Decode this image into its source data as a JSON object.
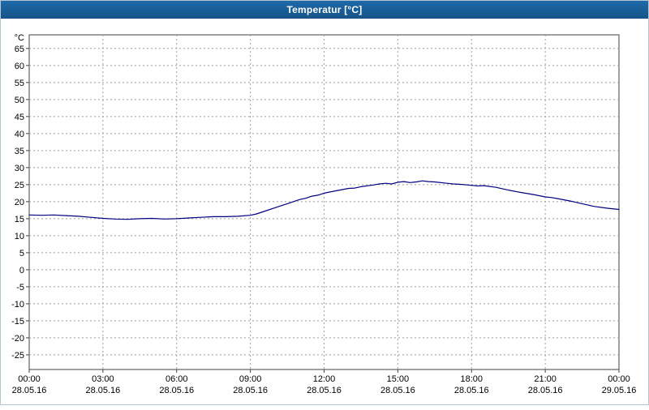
{
  "title_bar": {
    "title": "Temperatur [°C]"
  },
  "chart_data": {
    "type": "line",
    "title": "Temperatur [°C]",
    "ylabel": "°C",
    "xlabel": "",
    "grid": true,
    "legend": "none",
    "ylim": [
      -29.3,
      69.0
    ],
    "xlim": [
      0,
      24
    ],
    "yticks": [
      65,
      60,
      55,
      50,
      45,
      40,
      35,
      30,
      25,
      20,
      15,
      10,
      5,
      0,
      -5,
      -10,
      -15,
      -20,
      -25
    ],
    "xticks": [
      {
        "h": 0,
        "time": "00:00",
        "date": "28.05.16"
      },
      {
        "h": 3,
        "time": "03:00",
        "date": "28.05.16"
      },
      {
        "h": 6,
        "time": "06:00",
        "date": "28.05.16"
      },
      {
        "h": 9,
        "time": "09:00",
        "date": "28.05.16"
      },
      {
        "h": 12,
        "time": "12:00",
        "date": "28.05.16"
      },
      {
        "h": 15,
        "time": "15:00",
        "date": "28.05.16"
      },
      {
        "h": 18,
        "time": "18:00",
        "date": "28.05.16"
      },
      {
        "h": 21,
        "time": "21:00",
        "date": "28.05.16"
      },
      {
        "h": 24,
        "time": "00:00",
        "date": "29.05.16"
      }
    ],
    "colors": {
      "line": "#000080",
      "grid": "#9e9e9e",
      "axis": "#404040",
      "titlebar": "#155489",
      "plot_background": "#ffffff"
    },
    "series": [
      {
        "name": "Temperatur",
        "unit": "°C",
        "points": [
          [
            0,
            16.1
          ],
          [
            0.5,
            16.0
          ],
          [
            1,
            16.1
          ],
          [
            1.5,
            15.9
          ],
          [
            2,
            15.7
          ],
          [
            2.5,
            15.4
          ],
          [
            3,
            15.1
          ],
          [
            3.5,
            14.9
          ],
          [
            4,
            14.8
          ],
          [
            4.5,
            15.0
          ],
          [
            5,
            15.1
          ],
          [
            5.5,
            14.9
          ],
          [
            6,
            15.0
          ],
          [
            6.5,
            15.2
          ],
          [
            7,
            15.4
          ],
          [
            7.5,
            15.6
          ],
          [
            8,
            15.6
          ],
          [
            8.5,
            15.7
          ],
          [
            9,
            16.0
          ],
          [
            9.25,
            16.4
          ],
          [
            9.5,
            17.0
          ],
          [
            10,
            18.2
          ],
          [
            10.5,
            19.4
          ],
          [
            11,
            20.6
          ],
          [
            11.25,
            21.0
          ],
          [
            11.5,
            21.6
          ],
          [
            11.75,
            21.9
          ],
          [
            12,
            22.5
          ],
          [
            12.5,
            23.2
          ],
          [
            13,
            23.9
          ],
          [
            13.25,
            24.0
          ],
          [
            13.5,
            24.4
          ],
          [
            14,
            24.9
          ],
          [
            14.25,
            25.2
          ],
          [
            14.5,
            25.4
          ],
          [
            14.75,
            25.2
          ],
          [
            15,
            25.7
          ],
          [
            15.25,
            25.9
          ],
          [
            15.5,
            25.6
          ],
          [
            15.75,
            25.8
          ],
          [
            16,
            26.1
          ],
          [
            16.25,
            25.9
          ],
          [
            16.5,
            25.8
          ],
          [
            17,
            25.4
          ],
          [
            17.25,
            25.2
          ],
          [
            17.5,
            25.1
          ],
          [
            18,
            24.8
          ],
          [
            18.25,
            24.6
          ],
          [
            18.5,
            24.7
          ],
          [
            19,
            24.2
          ],
          [
            19.25,
            23.8
          ],
          [
            19.5,
            23.4
          ],
          [
            20,
            22.7
          ],
          [
            20.5,
            22.1
          ],
          [
            21,
            21.4
          ],
          [
            21.25,
            21.2
          ],
          [
            21.5,
            20.9
          ],
          [
            22,
            20.2
          ],
          [
            22.25,
            19.8
          ],
          [
            22.5,
            19.4
          ],
          [
            23,
            18.6
          ],
          [
            23.5,
            18.1
          ],
          [
            24,
            17.7
          ]
        ]
      }
    ]
  }
}
